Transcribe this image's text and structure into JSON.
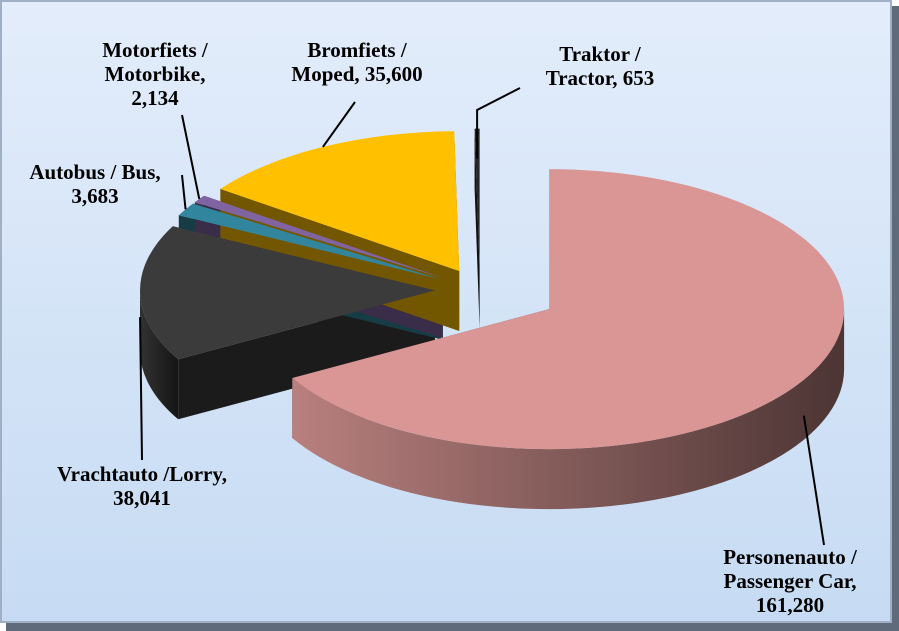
{
  "chart_data": {
    "type": "pie",
    "categories": [
      "Personenauto / Passenger Car,",
      "Vrachtauto /Lorry,",
      "Autobus / Bus,",
      "Motorfiets / Motorbike,",
      "Bromfiets / Moped,",
      "Traktor / Tractor,"
    ],
    "values": [
      161280,
      38041,
      3683,
      2134,
      35600,
      653
    ],
    "value_labels": [
      "161,280",
      "38,041",
      "3,683",
      "2,134",
      "35,600",
      "653"
    ],
    "colors": [
      "#d99694",
      "#3b3b3b",
      "#31859c",
      "#8064a2",
      "#ffc000",
      "#262626"
    ]
  }
}
